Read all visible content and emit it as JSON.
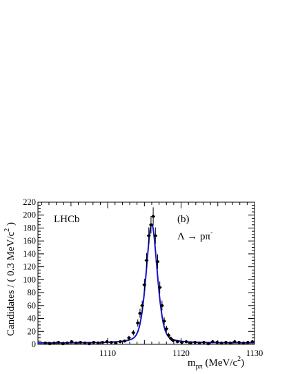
{
  "chart_data": {
    "type": "line",
    "annotations": {
      "experiment": "LHCb",
      "panel": "(b)",
      "decay_main": "Λ → pπ",
      "decay_sup": "-"
    },
    "xlabel": {
      "main": "m",
      "sub": "pπ",
      "unit_open": " (MeV/c",
      "unit_sup": "2",
      "unit_close": ")"
    },
    "ylabel": {
      "main": "Candidates / ( 0.3 MeV/c",
      "sup": "2",
      "close": " )"
    },
    "xlim": [
      1100.5,
      1130
    ],
    "ylim": [
      0,
      220
    ],
    "x_ticks": [
      1110,
      1120,
      1130
    ],
    "y_ticks": [
      0,
      20,
      40,
      60,
      80,
      100,
      120,
      140,
      160,
      180,
      200,
      220
    ],
    "grid": false,
    "colors": {
      "fit": "#1414c8",
      "data": "#000000"
    },
    "series": [
      {
        "kind": "data_points",
        "x": [
          1101.5,
          1102.1,
          1102.7,
          1103.3,
          1103.9,
          1104.5,
          1105.1,
          1105.7,
          1106.3,
          1106.9,
          1107.5,
          1108.1,
          1108.7,
          1109.3,
          1109.9,
          1110.5,
          1111.1,
          1111.7,
          1112.3,
          1112.9,
          1113.5,
          1114.1,
          1114.4,
          1114.7,
          1115.0,
          1115.3,
          1115.6,
          1115.9,
          1116.2,
          1116.5,
          1116.8,
          1117.1,
          1117.4,
          1117.7,
          1118.0,
          1118.3,
          1118.6,
          1118.9,
          1119.5,
          1120.1,
          1120.7,
          1121.3,
          1121.9,
          1122.5,
          1123.1,
          1123.7,
          1124.3,
          1124.9,
          1125.5,
          1126.1,
          1126.7,
          1127.3,
          1127.9,
          1128.5,
          1129.1,
          1129.7
        ],
        "y": [
          2,
          1,
          2,
          3,
          1,
          2,
          4,
          2,
          3,
          2,
          1,
          3,
          2,
          3,
          4,
          3,
          2,
          4,
          5,
          10,
          18,
          33,
          48,
          60,
          92,
          130,
          168,
          185,
          198,
          168,
          128,
          88,
          60,
          36,
          24,
          14,
          9,
          6,
          4,
          3,
          4,
          2,
          3,
          2,
          3,
          1,
          4,
          3,
          2,
          3,
          2,
          4,
          3,
          2,
          3,
          4
        ],
        "yerr": [
          1.5,
          1.2,
          1.5,
          1.8,
          1.2,
          1.5,
          2,
          1.5,
          1.8,
          1.5,
          1.2,
          1.8,
          1.5,
          1.8,
          2,
          1.8,
          1.5,
          2,
          2.2,
          3.2,
          4.3,
          5.7,
          7,
          7.7,
          9.6,
          11.4,
          13,
          13.6,
          14.1,
          13,
          11.3,
          9.4,
          7.7,
          6,
          4.9,
          3.8,
          3,
          2.5,
          2,
          1.8,
          2,
          1.5,
          1.8,
          1.5,
          1.8,
          1.2,
          2,
          1.8,
          1.5,
          1.8,
          1.5,
          2,
          1.8,
          1.5,
          1.8,
          2
        ]
      },
      {
        "kind": "fit_curve",
        "peak_x": 1116.0,
        "peak_y": 186,
        "width": 0.8,
        "background": 2
      }
    ]
  }
}
